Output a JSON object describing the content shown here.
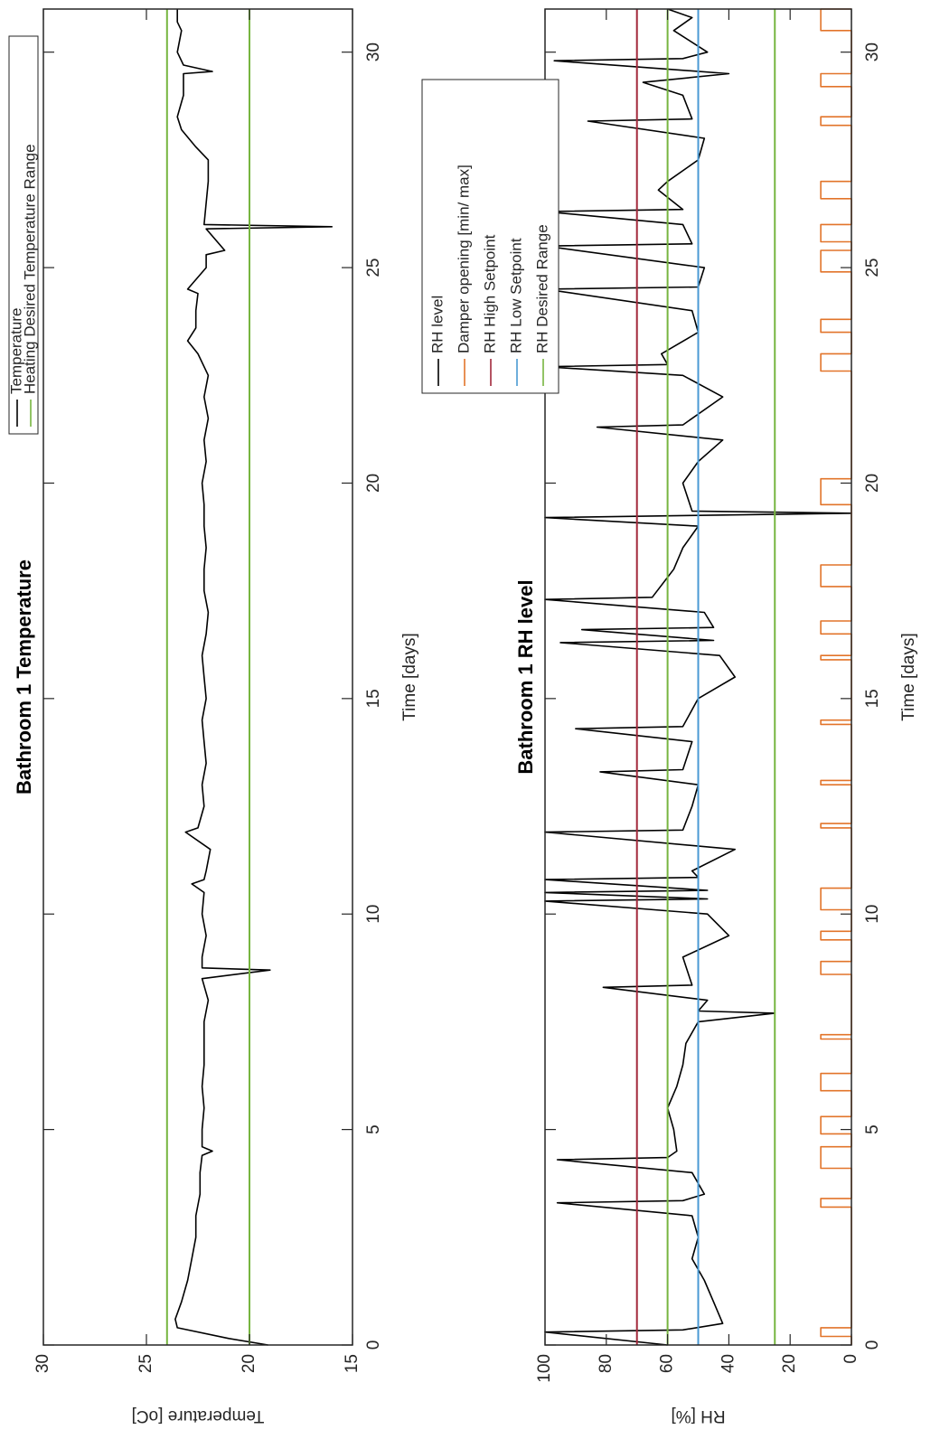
{
  "chart_data": [
    {
      "type": "line",
      "title": "Bathroom 1 Temperature",
      "xlabel": "Time [days]",
      "ylabel": "Temperature [oC]",
      "xlim": [
        0,
        31
      ],
      "ylim": [
        15,
        30
      ],
      "xticks": [
        0,
        5,
        10,
        15,
        20,
        25,
        30
      ],
      "yticks": [
        15,
        20,
        25,
        30
      ],
      "legend": "upper right",
      "series": [
        {
          "name": "Temperature",
          "color": "#000000",
          "x": [
            0,
            0.15,
            0.4,
            0.6,
            1,
            1.5,
            2,
            2.5,
            3,
            3.5,
            4,
            4.4,
            4.5,
            4.6,
            5,
            5.5,
            6,
            6.5,
            7,
            7.5,
            8,
            8.5,
            8.7,
            8.75,
            9,
            9.5,
            10,
            10.5,
            10.7,
            10.8,
            11,
            11.5,
            11.9,
            12,
            12.5,
            13,
            13.5,
            14,
            14.5,
            15,
            15.5,
            16,
            16.5,
            17,
            17.5,
            18,
            18.5,
            19,
            19.5,
            20,
            20.5,
            21,
            21.5,
            22,
            22.5,
            23,
            23.3,
            23.6,
            24,
            24.4,
            24.5,
            25,
            25.3,
            25.4,
            25.9,
            25.95,
            26,
            27,
            27.5,
            27.8,
            28.2,
            28.5,
            29,
            29.5,
            29.55,
            29.7,
            30,
            30.5,
            30.7,
            31
          ],
          "values": [
            19.1,
            21,
            23.5,
            23.6,
            23.3,
            23.0,
            22.8,
            22.6,
            22.6,
            22.4,
            22.4,
            22.3,
            21.8,
            22.3,
            22.3,
            22.2,
            22.3,
            22.2,
            22.2,
            22.2,
            22.0,
            22.3,
            19,
            22.3,
            22.3,
            22.1,
            22.3,
            22.2,
            22.8,
            22.2,
            22.1,
            21.9,
            23.1,
            22.5,
            22.2,
            22.3,
            22.1,
            22.2,
            22.3,
            22.1,
            22.2,
            22.3,
            22.1,
            22.0,
            22.2,
            22.2,
            22.1,
            22.2,
            22.2,
            22.3,
            22.1,
            22.2,
            22.0,
            22.2,
            22.0,
            22.5,
            23.0,
            22.6,
            22.6,
            22.5,
            23.0,
            22.1,
            22.1,
            21.2,
            22.1,
            16,
            22.2,
            22.0,
            22.0,
            22.6,
            23.3,
            23.5,
            23.2,
            23.2,
            21.8,
            23.2,
            23.5,
            23.3,
            23.5,
            23.5
          ]
        },
        {
          "name": "Heating Desired Temperature Range",
          "color": "#77b540",
          "levels": [
            20,
            24
          ]
        }
      ]
    },
    {
      "type": "line",
      "title": "Bathroom 1 RH level",
      "xlabel": "Time [days]",
      "ylabel": "RH [%]",
      "xlim": [
        0,
        31
      ],
      "ylim": [
        0,
        100
      ],
      "xticks": [
        0,
        5,
        10,
        15,
        20,
        25,
        30
      ],
      "yticks": [
        0,
        20,
        40,
        60,
        80,
        100
      ],
      "legend": "upper right",
      "series": [
        {
          "name": "RH level",
          "color": "#000000",
          "x": [
            0,
            0.3,
            0.35,
            0.5,
            1,
            1.5,
            2,
            2.5,
            3,
            3.3,
            3.35,
            3.5,
            4,
            4.3,
            4.35,
            4.5,
            5,
            5.5,
            6,
            6.5,
            7,
            7.5,
            7.7,
            7.75,
            8,
            8.3,
            8.35,
            9,
            9.5,
            10,
            10.3,
            10.35,
            10.5,
            10.55,
            10.8,
            10.85,
            11,
            11.5,
            11.9,
            11.95,
            12.5,
            13,
            13.3,
            13.35,
            14,
            14.3,
            14.35,
            15,
            15.5,
            16,
            16.3,
            16.35,
            16.6,
            16.65,
            17,
            17.3,
            17.35,
            18,
            18.5,
            19,
            19.2,
            19.25,
            19.3,
            19.35,
            20,
            20.5,
            21,
            21.3,
            21.35,
            22,
            22.5,
            22.7,
            22.75,
            23,
            23.5,
            24,
            24.5,
            24.55,
            25,
            25.5,
            25.55,
            26,
            26.3,
            26.35,
            26.8,
            27,
            27.5,
            28,
            28.4,
            28.45,
            29,
            29.3,
            29.5,
            29.8,
            29.85,
            30,
            30.5,
            30.8,
            31
          ],
          "values": [
            60,
            100,
            55,
            42,
            45,
            48,
            52,
            50,
            52,
            96,
            55,
            48,
            52,
            96,
            60,
            57,
            58,
            60,
            57,
            55,
            54,
            50,
            25,
            50,
            47,
            81,
            52,
            55,
            40,
            47,
            100,
            47,
            100,
            47,
            100,
            50,
            52,
            38,
            100,
            55,
            52,
            50,
            82,
            55,
            52,
            90,
            55,
            50,
            38,
            43,
            95,
            45,
            88,
            45,
            48,
            100,
            65,
            58,
            55,
            50,
            100,
            50,
            0,
            52,
            55,
            50,
            42,
            83,
            55,
            42,
            55,
            100,
            60,
            62,
            50,
            52,
            100,
            50,
            48,
            100,
            52,
            55,
            100,
            55,
            63,
            60,
            50,
            48,
            86,
            52,
            55,
            68,
            40,
            97,
            55,
            47,
            58,
            52,
            60
          ]
        },
        {
          "name": "Damper opening [min/ max]",
          "color": "#e2742a",
          "x": [
            0,
            0.2,
            0.2,
            0.4,
            0.4,
            3.2,
            3.2,
            3.4,
            3.4,
            4.1,
            4.1,
            4.6,
            4.6,
            4.9,
            4.9,
            5.3,
            5.3,
            5.9,
            5.9,
            6.3,
            6.3,
            7.1,
            7.1,
            7.2,
            7.2,
            8.6,
            8.6,
            8.9,
            8.9,
            9.4,
            9.4,
            9.6,
            9.6,
            10.1,
            10.1,
            10.6,
            10.6,
            12.0,
            12.0,
            12.1,
            12.1,
            13.0,
            13.0,
            13.1,
            13.1,
            14.4,
            14.4,
            14.5,
            14.5,
            15.9,
            15.9,
            16.0,
            16.0,
            16.5,
            16.5,
            16.8,
            16.8,
            17.6,
            17.6,
            18.1,
            18.1,
            19.5,
            19.5,
            20.1,
            20.1,
            22.6,
            22.6,
            23.0,
            23.0,
            23.5,
            23.5,
            23.8,
            23.8,
            24.9,
            24.9,
            25.4,
            25.4,
            25.6,
            25.6,
            26.0,
            26.0,
            26.6,
            26.6,
            27.0,
            27.0,
            28.3,
            28.3,
            28.5,
            28.5,
            29.2,
            29.2,
            29.5,
            29.5,
            30.5,
            30.5,
            31,
            31
          ],
          "values": [
            0,
            0,
            10,
            10,
            0,
            0,
            10,
            10,
            0,
            0,
            10,
            10,
            0,
            0,
            10,
            10,
            0,
            0,
            10,
            10,
            0,
            0,
            10,
            10,
            0,
            0,
            10,
            10,
            0,
            0,
            10,
            10,
            0,
            0,
            10,
            10,
            0,
            0,
            10,
            10,
            0,
            0,
            10,
            10,
            0,
            0,
            10,
            10,
            0,
            0,
            10,
            10,
            0,
            0,
            10,
            10,
            0,
            0,
            10,
            10,
            0,
            0,
            10,
            10,
            0,
            0,
            10,
            10,
            0,
            0,
            10,
            10,
            0,
            0,
            10,
            10,
            0,
            0,
            10,
            10,
            0,
            0,
            10,
            10,
            0,
            0,
            10,
            10,
            0,
            0,
            10,
            10,
            0,
            0,
            10,
            10,
            0
          ]
        },
        {
          "name": "RH High Setpoint",
          "color": "#a2283a",
          "levels": [
            70
          ]
        },
        {
          "name": "RH Low Setpoint",
          "color": "#4a9ad4",
          "levels": [
            50
          ]
        },
        {
          "name": "RH Desired Range",
          "color": "#77b540",
          "levels": [
            25,
            60
          ]
        }
      ]
    }
  ]
}
